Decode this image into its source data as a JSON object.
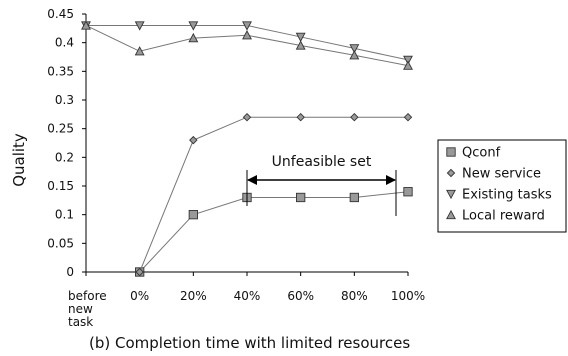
{
  "caption": "(b) Completion time with limited resources",
  "annotation": "Unfeasible set",
  "chart_data": {
    "type": "line",
    "ylabel": "Quality",
    "xlabel": "",
    "ylim": [
      0,
      0.45
    ],
    "yticks": [
      "0",
      "0.05",
      "0.1",
      "0.15",
      "0.2",
      "0.25",
      "0.3",
      "0.35",
      "0.4",
      "0.45"
    ],
    "categories": [
      [
        "before",
        "new",
        "task"
      ],
      [
        "0%"
      ],
      [
        "20%"
      ],
      [
        "40%"
      ],
      [
        "60%"
      ],
      [
        "80%"
      ],
      [
        "100%"
      ]
    ],
    "legend_position": "right",
    "grid": false,
    "series": [
      {
        "name": "Qconf",
        "marker": "square",
        "values": [
          null,
          0,
          0.1,
          0.13,
          0.13,
          0.13,
          0.14
        ]
      },
      {
        "name": "New service",
        "marker": "diamond",
        "values": [
          null,
          0,
          0.23,
          0.27,
          0.27,
          0.27,
          0.27
        ]
      },
      {
        "name": "Existing tasks",
        "marker": "triangle-down",
        "values": [
          0.43,
          0.43,
          0.43,
          0.43,
          0.41,
          0.39,
          0.37
        ]
      },
      {
        "name": "Local reward",
        "marker": "triangle-up",
        "values": [
          0.43,
          0.385,
          0.408,
          0.413,
          0.395,
          0.378,
          0.36
        ]
      }
    ],
    "span_annotation": {
      "text": "Unfeasible set",
      "from_category": 3,
      "to_category": 6
    }
  },
  "colors": {
    "marker_fill": "#999999",
    "marker_stroke": "#333333",
    "line": "#777777",
    "axis": "#000000"
  }
}
